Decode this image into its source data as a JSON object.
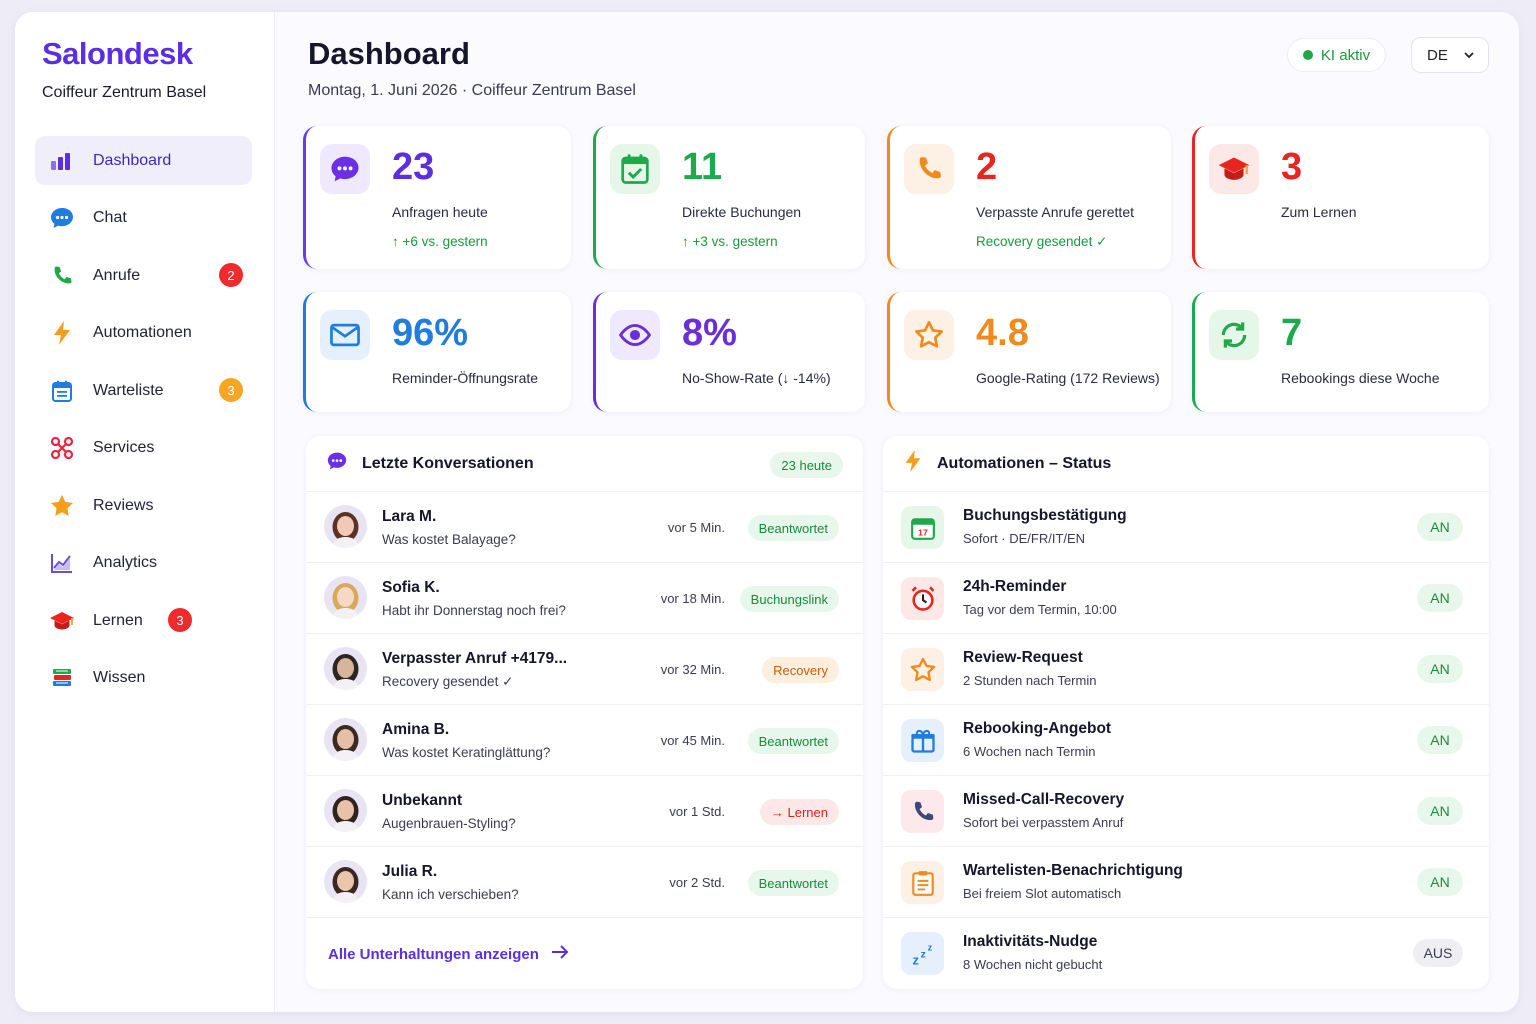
{
  "sidebar": {
    "brand": "Salondesk",
    "salon_name": "Coiffeur Zentrum Basel",
    "items": [
      {
        "label": "Dashboard",
        "icon": "bar-chart-icon"
      },
      {
        "label": "Chat",
        "icon": "chat-bubble-icon"
      },
      {
        "label": "Anrufe",
        "icon": "phone-icon",
        "badge": "2",
        "badge_color": "#ef2b2b"
      },
      {
        "label": "Automationen",
        "icon": "lightning-icon"
      },
      {
        "label": "Warteliste",
        "icon": "calendar-list-icon",
        "badge": "3",
        "badge_color": "#f5a623"
      },
      {
        "label": "Services",
        "icon": "scissors-icon"
      },
      {
        "label": "Reviews",
        "icon": "star-icon"
      },
      {
        "label": "Analytics",
        "icon": "line-chart-icon"
      },
      {
        "label": "Lernen",
        "icon": "graduation-cap-icon",
        "badge": "3",
        "badge_color": "#ef2b2b"
      },
      {
        "label": "Wissen",
        "icon": "books-icon"
      }
    ]
  },
  "header": {
    "title": "Dashboard",
    "subtitle": "Montag, 1. Juni 2026 · Coiffeur Zentrum Basel",
    "ki_status": "KI aktiv",
    "language": "DE"
  },
  "stats": [
    {
      "value": "23",
      "label": "Anfragen heute",
      "sub": "↑ +6 vs. gestern",
      "color": "#5b2ee6",
      "icon": "chat-bubble-icon"
    },
    {
      "value": "11",
      "label": "Direkte Buchungen",
      "sub": "↑ +3 vs. gestern",
      "color": "#1ea94a",
      "icon": "calendar-check-icon"
    },
    {
      "value": "2",
      "label": "Verpasste Anrufe gerettet",
      "sub": "Recovery gesendet ✓",
      "color": "#f08a1c",
      "value_color": "#e8251f",
      "icon": "phone-icon"
    },
    {
      "value": "3",
      "label": "Zum Lernen",
      "sub": "",
      "color": "#e8251f",
      "icon": "graduation-cap-icon"
    },
    {
      "value": "96%",
      "label": "Reminder-Öffnungsrate",
      "color": "#1f7de0",
      "icon": "mail-icon"
    },
    {
      "value": "8%",
      "label": "No-Show-Rate (↓ -14%)",
      "color": "#6a2fd6",
      "icon": "eye-icon"
    },
    {
      "value": "4.8",
      "label": "Google-Rating (172 Reviews)",
      "color": "#f08a1c",
      "icon": "star-outline-icon"
    },
    {
      "value": "7",
      "label": "Rebookings diese Woche",
      "color": "#1ea94a",
      "icon": "refresh-icon"
    }
  ],
  "conversations": {
    "title": "Letzte Konversationen",
    "count_label": "23 heute",
    "rows": [
      {
        "name": "Lara M.",
        "message": "Was kostet Balayage?",
        "time": "vor 5 Min.",
        "status": "Beantwortet",
        "status_type": "green"
      },
      {
        "name": "Sofia K.",
        "message": "Habt ihr Donnerstag noch frei?",
        "time": "vor 18 Min.",
        "status": "Buchungslink",
        "status_type": "green"
      },
      {
        "name": "Verpasster Anruf +4179...",
        "message": "Recovery gesendet ✓",
        "time": "vor 32 Min.",
        "status": "Recovery",
        "status_type": "orange"
      },
      {
        "name": "Amina B.",
        "message": "Was kostet Keratinglättung?",
        "time": "vor 45 Min.",
        "status": "Beantwortet",
        "status_type": "green"
      },
      {
        "name": "Unbekannt",
        "message": "Augenbrauen-Styling?",
        "time": "vor 1 Std.",
        "status": "→ Lernen",
        "status_type": "red"
      },
      {
        "name": "Julia R.",
        "message": "Kann ich verschieben?",
        "time": "vor 2 Std.",
        "status": "Beantwortet",
        "status_type": "green"
      }
    ],
    "all_link": "Alle Unterhaltungen anzeigen"
  },
  "automations": {
    "title": "Automationen – Status",
    "rows": [
      {
        "name": "Buchungsbestätigung",
        "sub": "Sofort · DE/FR/IT/EN",
        "state": "AN",
        "icon": "calendar-17-icon"
      },
      {
        "name": "24h-Reminder",
        "sub": "Tag vor dem Termin, 10:00",
        "state": "AN",
        "icon": "alarm-clock-icon"
      },
      {
        "name": "Review-Request",
        "sub": "2 Stunden nach Termin",
        "state": "AN",
        "icon": "star-outline-icon"
      },
      {
        "name": "Rebooking-Angebot",
        "sub": "6 Wochen nach Termin",
        "state": "AN",
        "icon": "gift-icon"
      },
      {
        "name": "Missed-Call-Recovery",
        "sub": "Sofort bei verpasstem Anruf",
        "state": "AN",
        "icon": "phone-icon"
      },
      {
        "name": "Wartelisten-Benachrichtigung",
        "sub": "Bei freiem Slot automatisch",
        "state": "AN",
        "icon": "clipboard-icon"
      },
      {
        "name": "Inaktivitäts-Nudge",
        "sub": "8 Wochen nicht gebucht",
        "state": "AUS",
        "icon": "sleep-zzz-icon"
      }
    ]
  }
}
